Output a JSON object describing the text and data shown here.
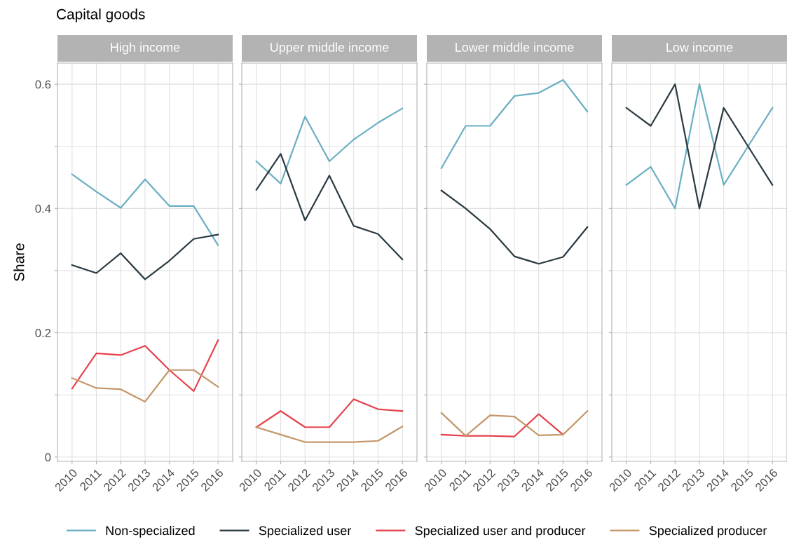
{
  "chart_data": [
    {
      "type": "line",
      "title": "High income",
      "ylabel": "Share",
      "annotations": [
        "Capital goods"
      ],
      "legend": "bottom",
      "grid": true,
      "line_style": "solid",
      "marker": "none",
      "categories": [
        "2010",
        "2011",
        "2012",
        "2013",
        "2014",
        "2015",
        "2016"
      ],
      "ylim": [
        -0.007,
        0.634
      ],
      "yticks": [
        0,
        {
          "value": 0.1,
          "label": null
        },
        0.2,
        {
          "value": 0.3,
          "label": null
        },
        0.4,
        {
          "value": 0.5,
          "label": null
        },
        0.6
      ],
      "series": [
        {
          "name": "Non-specialized",
          "color": "#6aafc2",
          "values": [
            0.455,
            0.427,
            0.401,
            0.447,
            0.404,
            0.404,
            0.341
          ]
        },
        {
          "name": "Specialized user",
          "color": "#2b3a42",
          "values": [
            0.309,
            0.296,
            0.328,
            0.286,
            0.316,
            0.351,
            0.358
          ]
        },
        {
          "name": "Specialized user and producer",
          "color": "#e5434d",
          "values": [
            0.11,
            0.167,
            0.164,
            0.179,
            0.14,
            0.106,
            0.188
          ]
        },
        {
          "name": "Specialized producer",
          "color": "#c4976a",
          "values": [
            0.127,
            0.111,
            0.109,
            0.089,
            0.14,
            0.14,
            0.113
          ]
        }
      ]
    },
    {
      "type": "line",
      "title": "Upper middle income",
      "tick_labels": "x",
      "grid": true,
      "line_style": "solid",
      "marker": "none",
      "categories": [
        "2010",
        "2011",
        "2012",
        "2013",
        "2014",
        "2015",
        "2016"
      ],
      "ylim": [
        -0.007,
        0.634
      ],
      "yticks": [
        0,
        {
          "value": 0.1,
          "label": null
        },
        0.2,
        {
          "value": 0.3,
          "label": null
        },
        0.4,
        {
          "value": 0.5,
          "label": null
        },
        0.6
      ],
      "series": [
        {
          "color": "#6aafc2",
          "values": [
            0.476,
            0.44,
            0.548,
            0.476,
            0.511,
            0.538,
            0.561
          ]
        },
        {
          "color": "#2b3a42",
          "values": [
            0.43,
            0.488,
            0.381,
            0.453,
            0.372,
            0.359,
            0.318
          ]
        },
        {
          "color": "#e5434d",
          "values": [
            0.048,
            0.074,
            0.048,
            0.048,
            0.093,
            0.077,
            0.074
          ]
        },
        {
          "color": "#c4976a",
          "values": [
            0.048,
            0.036,
            0.024,
            0.024,
            0.024,
            0.026,
            0.049
          ]
        }
      ]
    },
    {
      "type": "line",
      "title": "Lower middle income",
      "tick_labels": "x",
      "grid": true,
      "line_style": "solid",
      "marker": "none",
      "categories": [
        "2010",
        "2011",
        "2012",
        "2013",
        "2014",
        "2015",
        "2016"
      ],
      "ylim": [
        -0.007,
        0.634
      ],
      "yticks": [
        0,
        {
          "value": 0.1,
          "label": null
        },
        0.2,
        {
          "value": 0.3,
          "label": null
        },
        0.4,
        {
          "value": 0.5,
          "label": null
        },
        0.6
      ],
      "series": [
        {
          "color": "#6aafc2",
          "values": [
            0.465,
            0.533,
            0.533,
            0.581,
            0.586,
            0.607,
            0.556
          ]
        },
        {
          "color": "#2b3a42",
          "values": [
            0.429,
            0.4,
            0.367,
            0.323,
            0.311,
            0.322,
            0.37
          ]
        },
        {
          "color": "#e5434d",
          "values": [
            0.036,
            0.034,
            0.034,
            0.033,
            0.069,
            0.036,
            null
          ]
        },
        {
          "color": "#c4976a",
          "values": [
            0.071,
            0.034,
            0.067,
            0.065,
            0.035,
            0.036,
            0.074
          ]
        }
      ]
    },
    {
      "type": "line",
      "title": "Low income",
      "tick_labels": "x",
      "grid": true,
      "line_style": "solid",
      "marker": "none",
      "categories": [
        "2010",
        "2011",
        "2012",
        "2013",
        "2014",
        "2015",
        "2016"
      ],
      "ylim": [
        -0.007,
        0.634
      ],
      "yticks": [
        0,
        {
          "value": 0.1,
          "label": null
        },
        0.2,
        {
          "value": 0.3,
          "label": null
        },
        0.4,
        {
          "value": 0.5,
          "label": null
        },
        0.6
      ],
      "series": [
        {
          "color": "#6aafc2",
          "values": [
            0.438,
            0.467,
            0.4,
            0.6,
            0.438,
            0.5,
            0.562
          ]
        },
        {
          "color": "#2b3a42",
          "values": [
            0.562,
            0.533,
            0.6,
            0.4,
            0.562,
            0.5,
            0.438
          ]
        }
      ]
    }
  ]
}
